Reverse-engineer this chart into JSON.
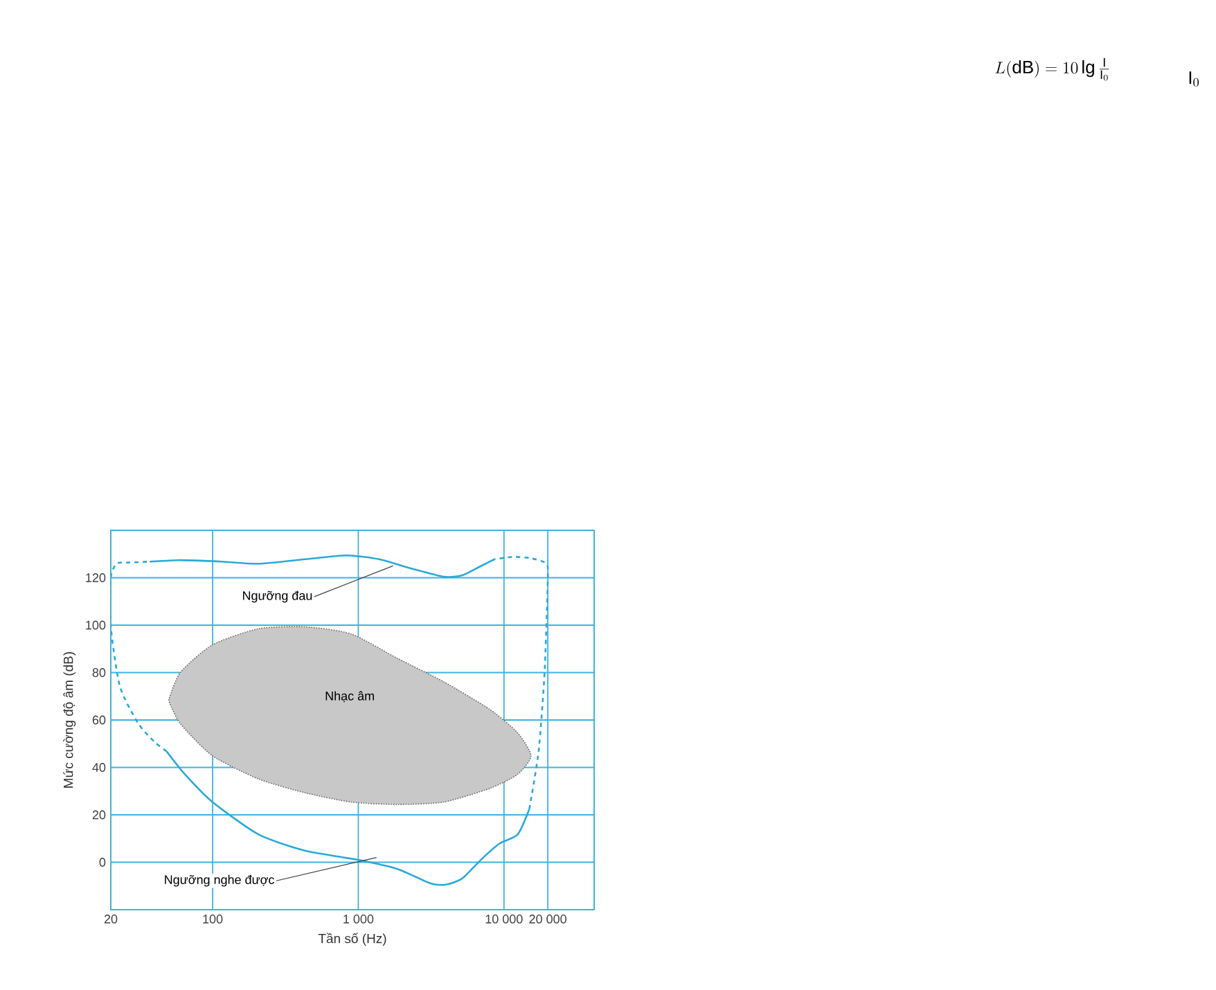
{
  "chart_data": {
    "type": "line",
    "xlabel": "Tần số (Hz)",
    "ylabel": "Mức cường độ âm (dB)",
    "log": "x",
    "xlim": [
      20,
      41600
    ],
    "ylim": [
      -20,
      140
    ],
    "xticks": [
      20,
      100,
      {
        "value": 1000,
        "label": "1 000"
      },
      {
        "value": 10000,
        "label": "10 000"
      },
      {
        "value": 20000,
        "label": "20 000"
      }
    ],
    "yticks": [
      0,
      20,
      40,
      60,
      80,
      100,
      120
    ],
    "grid": true,
    "marker": "none",
    "series": [
      {
        "name": "Ngưỡng đau",
        "color": "#29a9d8",
        "line_style": "solid",
        "x": [
          37,
          59.9,
          115.6,
          207,
          431,
          832,
          1388,
          2313,
          3862,
          5174,
          6931,
          8630
        ],
        "values": [
          126.8,
          127.4,
          126.8,
          125.9,
          127.8,
          129.4,
          127.8,
          123.9,
          120.4,
          121,
          124.9,
          127.8
        ]
      },
      {
        "name": "Ngưỡng nghe được",
        "color": "#29a9d8",
        "line_style": "solid",
        "x": [
          48.3,
          64.5,
          99.8,
          207,
          431,
          1000,
          1868,
          3103,
          4000,
          5174,
          6931,
          9274,
          12410,
          14920
        ],
        "values": [
          46.8,
          37.1,
          25.4,
          11.7,
          4.9,
          1,
          -2.9,
          -8.8,
          -9.4,
          -6.8,
          1,
          7.8,
          11.7,
          22.4
        ]
      },
      {
        "color": "#29a9d8",
        "line_style": "dashed",
        "x": [
          48.3,
          40,
          30.9,
          23.1,
          20,
          20,
          22,
          27,
          37
        ],
        "values": [
          46.8,
          50.7,
          58.5,
          74.1,
          99.5,
          120,
          126,
          126.4,
          126.8
        ]
      },
      {
        "color": "#29a9d8",
        "line_style": "dashed",
        "x": [
          14920,
          17290,
          19000,
          20000,
          19600,
          15320,
          11550,
          8630
        ],
        "values": [
          22.4,
          46.8,
          80,
          119,
          125.9,
          128.2,
          128.8,
          127.8
        ]
      },
      {
        "name": "Nhạc âm",
        "type": "area",
        "color": "#c8c8c8",
        "x": [
          49.9,
          59.9,
          99.8,
          207,
          431,
          893,
          1868,
          3862,
          8020,
          12410,
          15320,
          12410,
          8020,
          3862,
          1868,
          893,
          431,
          207,
          99.8,
          59.9,
          49.9
        ],
        "values": [
          68.3,
          80,
          91.7,
          98.5,
          99.3,
          96.3,
          85.9,
          76.1,
          64.4,
          54.6,
          44.9,
          37.1,
          31.2,
          25.4,
          24.4,
          25.4,
          29.3,
          35.1,
          44.9,
          58.5,
          68.3
        ]
      }
    ],
    "annotations": [
      "L(\\mathrm{dB}) = 10\\,\\mathrm{lg}\\,\\frac{\\mathrm{I}}{\\mathrm{I}_0}",
      "\\mathrm{I}_0"
    ]
  }
}
